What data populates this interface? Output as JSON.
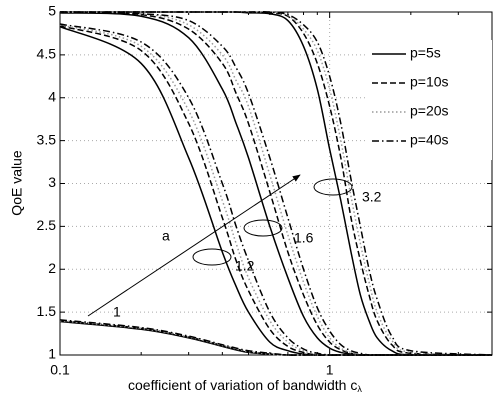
{
  "chart_data": {
    "type": "line",
    "xlabel": "coefficient of variation of bandwidth c",
    "xlabel_subscript": "λ",
    "ylabel": "QoE value",
    "x": [
      0.1,
      0.2,
      0.3,
      0.4,
      0.45,
      0.5,
      0.6,
      0.7,
      0.8,
      0.9,
      1,
      1.1,
      1.2,
      1.3,
      1.4,
      1.5,
      1.7,
      2,
      4
    ],
    "xlim": [
      0.1,
      4
    ],
    "xticks": [
      0.1,
      1
    ],
    "xminorticks": [
      0.2,
      0.3,
      0.4,
      0.5,
      0.6,
      0.7,
      0.8,
      0.9,
      2,
      3,
      4
    ],
    "xscale": "log",
    "ylim": [
      1,
      5
    ],
    "yticks": [
      1,
      1.5,
      2,
      2.5,
      3,
      3.5,
      4,
      4.5,
      5
    ],
    "grid": true,
    "legend": "upper right",
    "annotations": [
      "a",
      "1",
      "1.2",
      "1.6",
      "3.2"
    ],
    "series": [
      {
        "name": "p=5s",
        "color": "#000000",
        "dash": "solid",
        "groups": [
          [
            1.39,
            1.3,
            1.2,
            1.1,
            1.06,
            1.03,
            1.01,
            1,
            1,
            1,
            1,
            1,
            1,
            1,
            1,
            1,
            1,
            1,
            1
          ],
          [
            4.83,
            4.4,
            3.3,
            2.2,
            1.8,
            1.5,
            1.15,
            1.05,
            1.01,
            1,
            1,
            1,
            1,
            1,
            1,
            1,
            1,
            1,
            1
          ],
          [
            4.99,
            4.95,
            4.7,
            4.1,
            3.7,
            3.3,
            2.5,
            1.9,
            1.45,
            1.2,
            1.08,
            1.03,
            1.01,
            1,
            1,
            1,
            1,
            1,
            1
          ],
          [
            5,
            5,
            5,
            5,
            5,
            4.99,
            4.98,
            4.9,
            4.6,
            4.1,
            3.4,
            2.8,
            2.2,
            1.7,
            1.4,
            1.2,
            1.05,
            1,
            1
          ]
        ]
      },
      {
        "name": "p=10s",
        "color": "#000000",
        "dash": "dashed",
        "groups": [
          [
            1.4,
            1.31,
            1.21,
            1.11,
            1.07,
            1.04,
            1.01,
            1,
            1,
            1,
            1,
            1,
            1,
            1,
            1,
            1,
            1,
            1,
            1
          ],
          [
            4.84,
            4.55,
            3.7,
            2.6,
            2.1,
            1.75,
            1.3,
            1.1,
            1.03,
            1,
            1,
            1,
            1,
            1,
            1,
            1,
            1,
            1,
            1
          ],
          [
            5,
            4.97,
            4.8,
            4.4,
            4.05,
            3.7,
            2.9,
            2.2,
            1.7,
            1.35,
            1.15,
            1.06,
            1.02,
            1,
            1,
            1,
            1,
            1,
            1
          ],
          [
            5,
            5,
            5,
            5,
            5,
            5,
            4.99,
            4.95,
            4.75,
            4.4,
            3.9,
            3.3,
            2.6,
            2.1,
            1.7,
            1.4,
            1.12,
            1.02,
            1
          ]
        ]
      },
      {
        "name": "p=20s",
        "color": "#999999",
        "dash": "dotted",
        "groups": [
          [
            1.4,
            1.31,
            1.21,
            1.11,
            1.07,
            1.04,
            1.01,
            1,
            1,
            1,
            1,
            1,
            1,
            1,
            1,
            1,
            1,
            1,
            1
          ],
          [
            4.85,
            4.6,
            3.85,
            2.8,
            2.3,
            1.9,
            1.4,
            1.15,
            1.05,
            1.01,
            1,
            1,
            1,
            1,
            1,
            1,
            1,
            1,
            1
          ],
          [
            5,
            4.98,
            4.85,
            4.5,
            4.2,
            3.9,
            3.1,
            2.4,
            1.85,
            1.45,
            1.2,
            1.08,
            1.03,
            1.01,
            1,
            1,
            1,
            1,
            1
          ],
          [
            5,
            5,
            5,
            5,
            5,
            5,
            5,
            4.96,
            4.8,
            4.55,
            4.1,
            3.5,
            2.85,
            2.3,
            1.85,
            1.5,
            1.17,
            1.03,
            1
          ]
        ]
      },
      {
        "name": "p=40s",
        "color": "#000000",
        "dash": "dashdot",
        "groups": [
          [
            1.41,
            1.32,
            1.22,
            1.12,
            1.08,
            1.05,
            1.02,
            1,
            1,
            1,
            1,
            1,
            1,
            1,
            1,
            1,
            1,
            1,
            1
          ],
          [
            4.86,
            4.65,
            4.0,
            3.0,
            2.5,
            2.1,
            1.5,
            1.2,
            1.07,
            1.02,
            1,
            1,
            1,
            1,
            1,
            1,
            1,
            1,
            1
          ],
          [
            5,
            4.98,
            4.9,
            4.6,
            4.35,
            4.05,
            3.3,
            2.6,
            2.0,
            1.55,
            1.28,
            1.12,
            1.05,
            1.02,
            1,
            1,
            1,
            1,
            1
          ],
          [
            5,
            5,
            5,
            5,
            5,
            5,
            5,
            4.97,
            4.85,
            4.65,
            4.25,
            3.7,
            3.05,
            2.5,
            2.0,
            1.65,
            1.22,
            1.05,
            1
          ]
        ]
      }
    ]
  }
}
